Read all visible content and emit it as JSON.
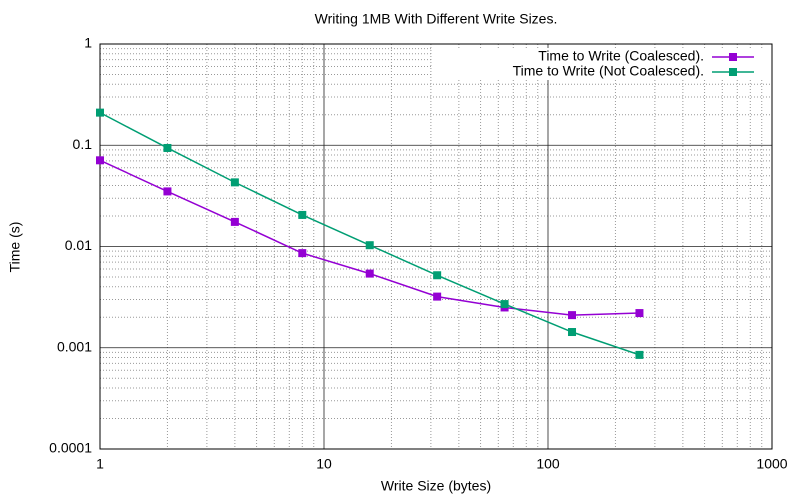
{
  "chart_data": {
    "type": "line",
    "title": "Writing 1MB With Different Write Sizes.",
    "x_label": "Write Size (bytes)",
    "y_label": "Time (s)",
    "x": [
      1,
      2,
      4,
      8,
      16,
      32,
      64,
      128,
      256
    ],
    "series": [
      {
        "name": "Time to Write (Coalesced).",
        "color": "#9400d3",
        "values": [
          0.071,
          0.035,
          0.0175,
          0.0086,
          0.0054,
          0.0032,
          0.0025,
          0.0021,
          0.0022
        ]
      },
      {
        "name": "Time to Write (Not Coalesced).",
        "color": "#009e73",
        "values": [
          0.21,
          0.094,
          0.043,
          0.0205,
          0.0103,
          0.0052,
          0.0027,
          0.00143,
          0.00085
        ]
      }
    ],
    "xlim": [
      1,
      1000
    ],
    "xticks": [
      1,
      10,
      100,
      1000
    ],
    "ylim": [
      0.0001,
      1
    ],
    "yticks": [
      0.0001,
      0.001,
      0.01,
      0.1,
      1
    ],
    "x_log": true,
    "y_log": true,
    "grid": true,
    "legend": "top-right"
  }
}
